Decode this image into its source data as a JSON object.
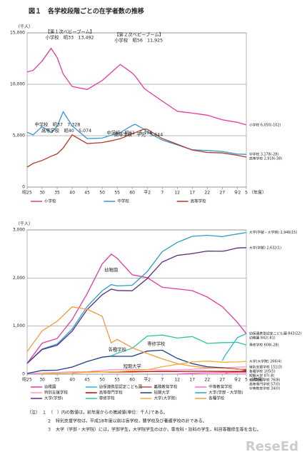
{
  "title": "図１　各学校段階ごとの在学者数の推移",
  "chart_data": [
    {
      "type": "line",
      "unit": "（千人）",
      "xlabel": "（年度）",
      "grid": true,
      "x": [
        1950,
        1952,
        1955,
        1958,
        1960,
        1962,
        1965,
        1970,
        1975,
        1978,
        1981,
        1985,
        1986,
        1989,
        1990,
        1995,
        2000,
        2005,
        2010,
        2015,
        2020,
        2023
      ],
      "xlim": [
        1950,
        2023
      ],
      "xticks": [
        {
          "value": 1950,
          "label": "昭25"
        },
        {
          "value": 1955,
          "label": "30"
        },
        {
          "value": 1960,
          "label": "35"
        },
        {
          "value": 1965,
          "label": "40"
        },
        {
          "value": 1970,
          "label": "45"
        },
        {
          "value": 1975,
          "label": "50"
        },
        {
          "value": 1980,
          "label": "55"
        },
        {
          "value": 1985,
          "label": "60"
        },
        {
          "value": 1990,
          "label": "平2"
        },
        {
          "value": 1995,
          "label": "7"
        },
        {
          "value": 2000,
          "label": "12"
        },
        {
          "value": 2005,
          "label": "17"
        },
        {
          "value": 2010,
          "label": "22"
        },
        {
          "value": 2015,
          "label": "27"
        },
        {
          "value": 2020,
          "label": "令2"
        },
        {
          "value": 2023,
          "label": "5"
        }
      ],
      "ylim": [
        0,
        15000
      ],
      "yticks": [
        0,
        {
          "value": 5000,
          "label": "5,000"
        },
        {
          "value": 10000,
          "label": "10,000"
        },
        {
          "value": 15000,
          "label": "15,000"
        }
      ],
      "series": [
        {
          "name": "小学校",
          "color": "#e6399b",
          "end_label": "小学校 6,050(-102)",
          "values": [
            11191,
            11350,
            12267,
            13492,
            12590,
            11000,
            9775,
            9493,
            10364,
            11146,
            11925,
            11095,
            10800,
            9600,
            9373,
            8370,
            7366,
            7197,
            6993,
            6543,
            6301,
            6050
          ]
        },
        {
          "name": "中学校",
          "color": "#3399cc",
          "end_label": "中学校 3,178(-28)",
          "values": [
            5333,
            5076,
            5884,
            5300,
            5900,
            7328,
            5957,
            4717,
            4762,
            5048,
            5300,
            5990,
            6106,
            5620,
            5369,
            4571,
            4104,
            3626,
            3558,
            3465,
            3211,
            3178
          ]
        },
        {
          "name": "高等学校",
          "color": "#b03a2e",
          "end_label": "高等学校 2,919(-38)",
          "values": [
            1935,
            2300,
            2592,
            3000,
            3239,
            3800,
            5074,
            4232,
            4333,
            4500,
            4700,
            5178,
            5300,
            5644,
            5620,
            4725,
            4165,
            3605,
            3369,
            3319,
            3092,
            2919
          ]
        }
      ],
      "annotations": [
        "【第１次ベビーブーム】",
        "小学校　昭33　13,492",
        "【第２次ベビーブーム】",
        "小学校　昭56　11,925",
        "中学校　昭37　7,328",
        "中学校　昭61　6,106",
        "高等学校　平元　5,644",
        "高等学校　昭40　5,074"
      ]
    },
    {
      "type": "line",
      "unit": "（千人）",
      "xlabel": "（年度）",
      "grid": true,
      "x": [
        1950,
        1955,
        1960,
        1965,
        1970,
        1975,
        1978,
        1980,
        1985,
        1990,
        1995,
        2000,
        2005,
        2010,
        2015,
        2016,
        2020,
        2023
      ],
      "xlim": [
        1950,
        2023
      ],
      "xticks": [
        {
          "value": 1950,
          "label": "昭25"
        },
        {
          "value": 1955,
          "label": "30"
        },
        {
          "value": 1960,
          "label": "35"
        },
        {
          "value": 1965,
          "label": "40"
        },
        {
          "value": 1970,
          "label": "45"
        },
        {
          "value": 1975,
          "label": "50"
        },
        {
          "value": 1980,
          "label": "55"
        },
        {
          "value": 1985,
          "label": "60"
        },
        {
          "value": 1990,
          "label": "平2"
        },
        {
          "value": 1995,
          "label": "7"
        },
        {
          "value": 2000,
          "label": "12"
        },
        {
          "value": 2005,
          "label": "17"
        },
        {
          "value": 2010,
          "label": "22"
        },
        {
          "value": 2015,
          "label": "27"
        },
        {
          "value": 2020,
          "label": "令2"
        },
        {
          "value": 2023,
          "label": "5"
        }
      ],
      "ylim": [
        0,
        3000
      ],
      "yticks": [
        0,
        {
          "value": 1000,
          "label": "1,000"
        },
        {
          "value": 2000,
          "label": "2,000"
        },
        {
          "value": 3000,
          "label": "3,000"
        }
      ],
      "series": [
        {
          "name": "幼稚園",
          "color": "#e6399b",
          "end_label": "幼稚園 842(-81)",
          "values": [
            225,
            644,
            742,
            1137,
            1675,
            2292,
            2497,
            2407,
            2068,
            2008,
            1808,
            1773,
            1738,
            1606,
            1403,
            1339,
            1079,
            842
          ]
        },
        {
          "name": "幼保連携型認定こども園",
          "color": "#29b6d8",
          "end_label": "幼保連携型認定こども園 843(22)",
          "values": [
            null,
            null,
            null,
            null,
            null,
            null,
            null,
            null,
            null,
            null,
            null,
            null,
            null,
            null,
            281,
            397,
            759,
            843
          ]
        },
        {
          "name": "義務教育学校",
          "color": "#c0504d",
          "end_label": "義務教育学校 76(8)",
          "values": [
            null,
            null,
            null,
            null,
            null,
            null,
            null,
            null,
            null,
            null,
            null,
            null,
            null,
            null,
            null,
            22,
            49,
            76
          ]
        },
        {
          "name": "中等教育学校",
          "color": "#ff66cc",
          "end_label": "中等教育学校 34(0)",
          "values": [
            null,
            null,
            null,
            null,
            null,
            null,
            null,
            null,
            null,
            null,
            null,
            1,
            19,
            28,
            32,
            32,
            32,
            34
          ]
        },
        {
          "name": "特別支援学校",
          "color": "#ff99cc",
          "end_label": "特別支援学校 151(3)",
          "values": [
            10,
            25,
            35,
            52,
            50,
            76,
            92,
            94,
            96,
            93,
            86,
            90,
            101,
            121,
            138,
            139,
            145,
            151
          ]
        },
        {
          "name": "高等専門学校",
          "color": "#cc0000",
          "end_label": "高等専門学校 57(0)",
          "values": [
            null,
            null,
            null,
            22,
            44,
            48,
            47,
            47,
            48,
            53,
            56,
            57,
            59,
            59,
            57,
            57,
            57,
            57
          ]
        },
        {
          "name": "短期大学",
          "color": "#1f3c88",
          "end_label": "短期大学 87(-8)",
          "values": [
            15,
            77,
            83,
            148,
            263,
            354,
            374,
            371,
            371,
            479,
            499,
            328,
            220,
            155,
            133,
            128,
            108,
            87
          ]
        },
        {
          "name": "大学(学部・大学院)",
          "color": "#29a0c8",
          "end_label": "大学(学部・大学院) 2,946(15)",
          "values": [
            225,
            523,
            626,
            938,
            1407,
            1734,
            1863,
            1835,
            1849,
            2133,
            2547,
            2741,
            2866,
            2888,
            2860,
            2874,
            2916,
            2946
          ]
        },
        {
          "name": "大学(学部)",
          "color": "#5b2c83",
          "end_label": "大学(学部) 2,632(1)",
          "values": [
            224,
            512,
            601,
            896,
            1344,
            1652,
            1770,
            1741,
            1734,
            1988,
            2331,
            2471,
            2509,
            2560,
            2556,
            2567,
            2624,
            2632
          ]
        },
        {
          "name": "専修学校",
          "color": "#2ec4a0",
          "end_label": "専修学校 608(-28)",
          "values": [
            null,
            null,
            null,
            null,
            null,
            null,
            380,
            433,
            539,
            792,
            814,
            751,
            783,
            638,
            656,
            656,
            662,
            608
          ]
        },
        {
          "name": "大学(大学院)",
          "color": "#f0b030",
          "end_label": "大学(大学院) 266(4)",
          "values": [
            null,
            10,
            16,
            28,
            41,
            48,
            53,
            54,
            70,
            90,
            154,
            205,
            254,
            272,
            250,
            249,
            254,
            266
          ]
        },
        {
          "name": "各種学校",
          "color": "#f39c3c",
          "end_label": "各種学校 105(5)",
          "values": [
            470,
            900,
            1100,
            1400,
            1350,
            1205,
            650,
            724,
            550,
            430,
            320,
            222,
            166,
            130,
            121,
            120,
            102,
            105
          ]
        }
      ],
      "annotations": [
        "幼稚園",
        "各種学校",
        "専修学校",
        "短期大学"
      ]
    }
  ],
  "notes": [
    "（注）　１　（　）内の数値は，前年度からの増減値(単位：千人)である。",
    "２　特別支援学校は，平成18年度以前は盲学校，聾学校及び養護学校の計である。",
    "３　大学（学部・大学院）には，学部学生，大学院学生のほか，専攻科・別科の学生，科目等履修生等を含む。"
  ],
  "watermark": "ReseEd"
}
